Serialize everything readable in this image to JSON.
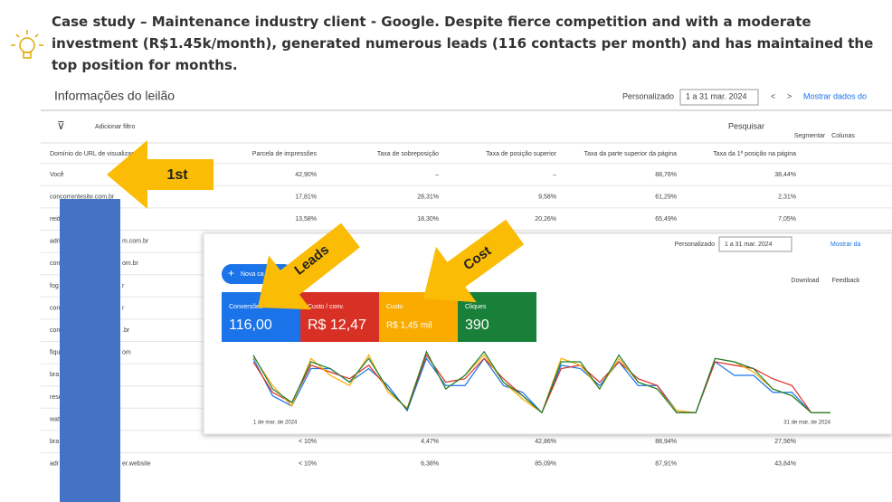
{
  "caption": "Case study – Maintenance industry client - Google. Despite fierce competition and with a moderate investment (R$1.45k/month), generated numerous leads (116 contacts per month) and has maintained the top position for months.",
  "header": {
    "title": "Informações do leilão",
    "period_mode": "Personalizado",
    "period": "1 a 31 mar. 2024",
    "show_data": "Mostrar dados do"
  },
  "toolbar": {
    "filter": "Adicionar filtro",
    "search": "Pesquisar",
    "segment": "Segmentar",
    "columns": "Colunas"
  },
  "table": {
    "columns": [
      "Domínio do URL de visualização",
      "Parcela de impressões",
      "Taxa de sobreposição",
      "Taxa de posição superior",
      "Taxa da parte superior da página",
      "Taxa da 1ª posição na página"
    ],
    "rows": [
      {
        "domain": [
          "Você"
        ],
        "cells": [
          "42,90%",
          "–",
          "–",
          "88,76%",
          "38,44%"
        ]
      },
      {
        "domain": [
          "concorrentesite.com.br"
        ],
        "cells": [
          "17,81%",
          "28,31%",
          "9,58%",
          "61,29%",
          "2,31%"
        ]
      },
      {
        "domain": [
          "reid"
        ],
        "cells": [
          "13,58%",
          "18,30%",
          "20,26%",
          "65,49%",
          "7,05%"
        ]
      },
      {
        "domain": [
          "adri",
          "m.com.br"
        ],
        "cells": []
      },
      {
        "domain": [
          "con",
          "om.br"
        ],
        "cells": []
      },
      {
        "domain": [
          "fog",
          "r"
        ],
        "cells": []
      },
      {
        "domain": [
          "con",
          "r"
        ],
        "cells": []
      },
      {
        "domain": [
          "con",
          ".br"
        ],
        "cells": []
      },
      {
        "domain": [
          "fiqu",
          "om"
        ],
        "cells": []
      },
      {
        "domain": [
          "bra"
        ],
        "cells": []
      },
      {
        "domain": [
          "rese"
        ],
        "cells": []
      },
      {
        "domain": [
          "wat"
        ],
        "cells": []
      },
      {
        "domain": [
          "bra"
        ],
        "cells": [
          "< 10%",
          "4,47%",
          "42,86%",
          "88,94%",
          "27,56%"
        ]
      },
      {
        "domain": [
          "adr",
          "er.website"
        ],
        "cells": [
          "< 10%",
          "6,38%",
          "85,09%",
          "87,91%",
          "43,84%"
        ]
      }
    ]
  },
  "annotations": {
    "first": "1st",
    "leads": "Leads",
    "cost": "Cost"
  },
  "panel": {
    "period_mode": "Personalizado",
    "period": "1 a 31 mar. 2024",
    "show_data": "Mostrar da",
    "new_button": "Nova ca",
    "download": "Download",
    "feedback": "Feedback",
    "metrics": [
      {
        "label": "Conversões",
        "value": "116,00",
        "color": "#1a73e8"
      },
      {
        "label": "Custo / conv.",
        "value": "R$ 12,47",
        "color": "#d93025"
      },
      {
        "label": "Custo",
        "value": "R$ 1,45 mil",
        "color": "#f9ab00"
      },
      {
        "label": "Cliques",
        "value": "390",
        "color": "#188038"
      }
    ],
    "chart": {
      "x_start": "1 de mar. de 2024",
      "x_end": "31 de mar. de 2024",
      "series": [
        {
          "color": "#1a73e8",
          "values": [
            85,
            30,
            15,
            70,
            70,
            50,
            70,
            45,
            8,
            85,
            45,
            45,
            85,
            45,
            35,
            5,
            75,
            70,
            45,
            80,
            45,
            45,
            8,
            5,
            80,
            60,
            60,
            35,
            35,
            5,
            5
          ]
        },
        {
          "color": "#d93025",
          "values": [
            80,
            35,
            20,
            75,
            65,
            55,
            75,
            40,
            10,
            90,
            50,
            55,
            85,
            55,
            30,
            5,
            70,
            75,
            50,
            80,
            55,
            45,
            5,
            5,
            80,
            75,
            70,
            55,
            45,
            5,
            5
          ]
        },
        {
          "color": "#f9ab00",
          "values": [
            88,
            45,
            15,
            85,
            60,
            45,
            90,
            35,
            12,
            95,
            40,
            60,
            90,
            50,
            25,
            5,
            85,
            75,
            40,
            85,
            50,
            40,
            8,
            5,
            85,
            80,
            65,
            40,
            30,
            5,
            5
          ]
        },
        {
          "color": "#188038",
          "values": [
            90,
            40,
            20,
            80,
            70,
            50,
            85,
            40,
            10,
            95,
            40,
            60,
            95,
            50,
            30,
            5,
            80,
            80,
            40,
            90,
            50,
            40,
            5,
            5,
            85,
            80,
            70,
            40,
            30,
            5,
            5
          ]
        }
      ]
    }
  }
}
